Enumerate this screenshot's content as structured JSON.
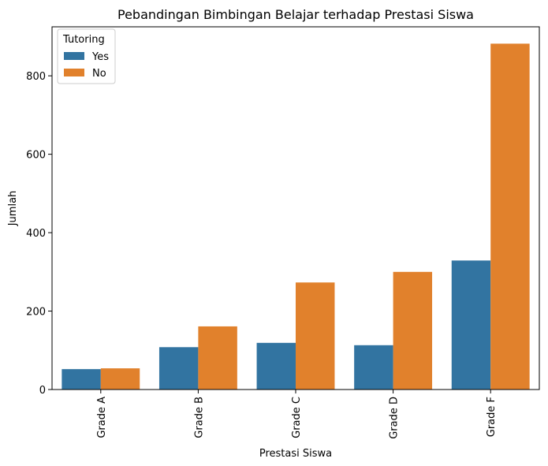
{
  "chart_data": {
    "type": "bar",
    "title": "Pebandingan Bimbingan Belajar terhadap Prestasi Siswa",
    "xlabel": "Prestasi Siswa",
    "ylabel": "Jumlah",
    "categories": [
      "Grade A",
      "Grade B",
      "Grade C",
      "Grade D",
      "Grade F"
    ],
    "series": [
      {
        "name": "Yes",
        "color": "#3274a1",
        "values": [
          52,
          108,
          119,
          113,
          329
        ]
      },
      {
        "name": "No",
        "color": "#e1812c",
        "values": [
          54,
          161,
          273,
          300,
          882
        ]
      }
    ],
    "ylim": [
      0,
      925
    ],
    "yticks": [
      0,
      200,
      400,
      600,
      800
    ],
    "legend": {
      "title": "Tutoring",
      "placement": "top-left"
    },
    "grid": false
  }
}
